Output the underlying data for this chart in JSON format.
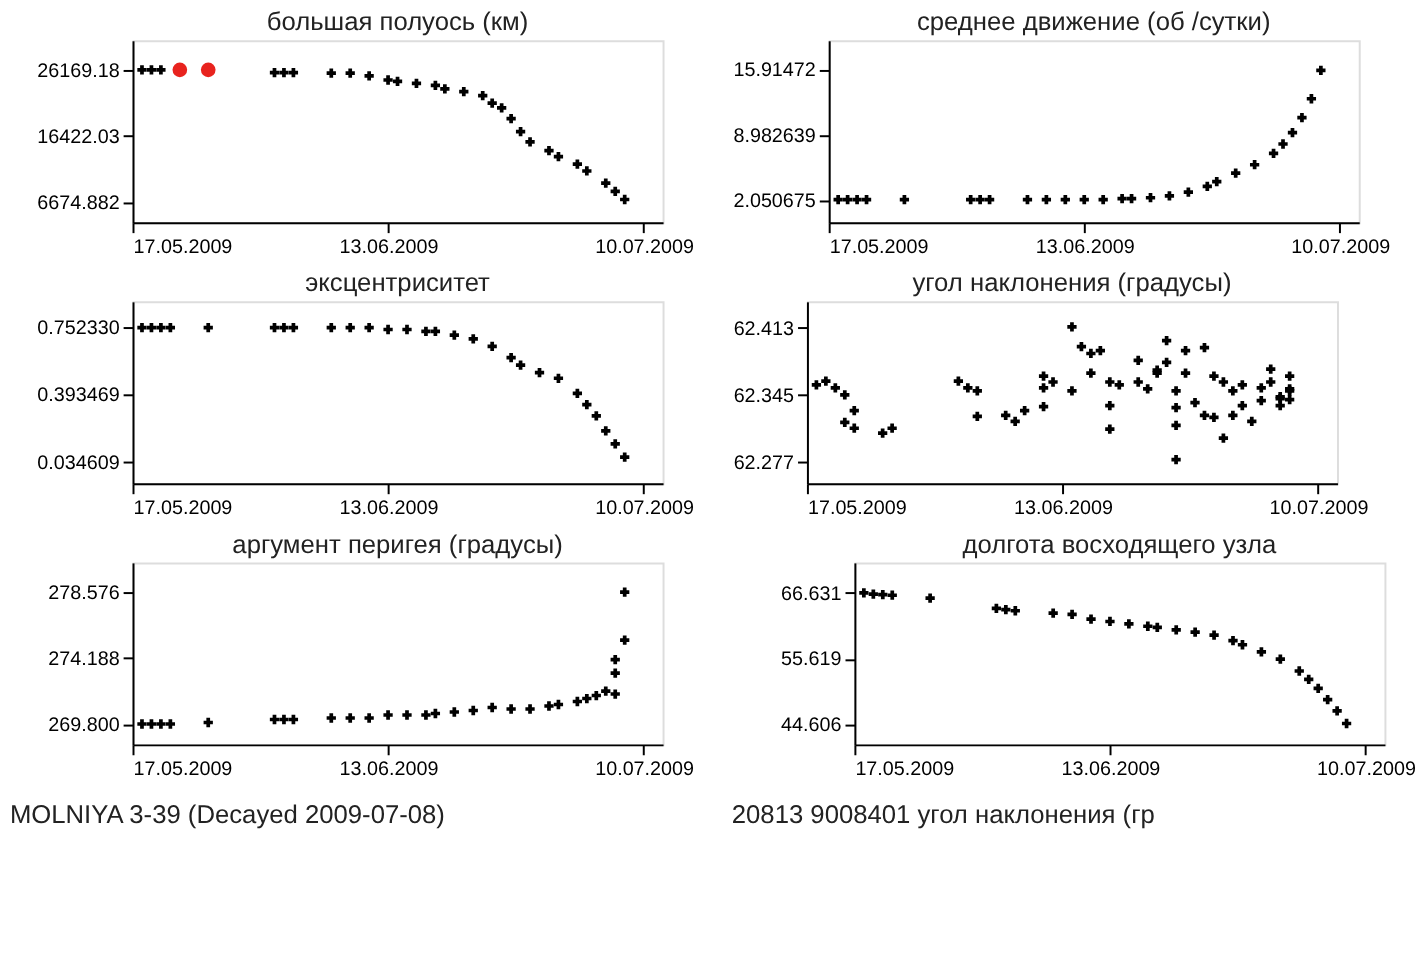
{
  "chart_data": [
    {
      "type": "scatter",
      "title": "большая полуось (км)",
      "marker": "cross",
      "xlim": [
        "2009-05-17",
        "2009-07-12"
      ],
      "xticks": [
        {
          "value": "2009-05-17",
          "label": "17.05.2009"
        },
        {
          "value": "2009-06-13",
          "label": "13.06.2009"
        },
        {
          "value": "2009-07-10",
          "label": "10.07.2009"
        }
      ],
      "ylim": [
        3750,
        30550
      ],
      "yticks": [
        6674.882,
        16422.03,
        26169.18
      ],
      "series": [
        {
          "color": "#000000",
          "x": [
            "2009-05-18",
            "2009-05-19",
            "2009-05-20",
            "2009-06-01",
            "2009-06-02",
            "2009-06-03",
            "2009-06-07",
            "2009-06-09",
            "2009-06-11",
            "2009-06-13",
            "2009-06-14",
            "2009-06-16",
            "2009-06-18",
            "2009-06-19",
            "2009-06-21",
            "2009-06-23",
            "2009-06-24",
            "2009-06-25",
            "2009-06-26",
            "2009-06-27",
            "2009-06-28",
            "2009-06-30",
            "2009-07-01",
            "2009-07-03",
            "2009-07-04",
            "2009-07-06",
            "2009-07-07",
            "2009-07-08"
          ],
          "values": [
            26200,
            26200,
            26200,
            25800,
            25800,
            25800,
            25700,
            25700,
            25300,
            24700,
            24500,
            24200,
            23900,
            23400,
            23000,
            22400,
            21300,
            20600,
            19000,
            17100,
            15600,
            14300,
            13400,
            12300,
            11300,
            9500,
            8300,
            7100
          ]
        },
        {
          "color": "#e8231e",
          "marker": "circle",
          "x": [
            "2009-05-22",
            "2009-05-25"
          ],
          "values": [
            26200,
            26200
          ]
        }
      ]
    },
    {
      "type": "scatter",
      "title": "среднее движение (об /сутки)",
      "marker": "cross",
      "xlim": [
        "2009-05-17",
        "2009-07-12"
      ],
      "xticks": [
        {
          "value": "2009-05-17",
          "label": "17.05.2009"
        },
        {
          "value": "2009-06-13",
          "label": "13.06.2009"
        },
        {
          "value": "2009-07-10",
          "label": "10.07.2009"
        }
      ],
      "ylim": [
        -0.3,
        19.0
      ],
      "yticks": [
        2.050675,
        8.982639,
        15.91472
      ],
      "series": [
        {
          "color": "#000000",
          "x": [
            "2009-05-18",
            "2009-05-19",
            "2009-05-20",
            "2009-05-21",
            "2009-05-25",
            "2009-06-01",
            "2009-06-02",
            "2009-06-03",
            "2009-06-07",
            "2009-06-09",
            "2009-06-11",
            "2009-06-13",
            "2009-06-15",
            "2009-06-17",
            "2009-06-18",
            "2009-06-20",
            "2009-06-22",
            "2009-06-24",
            "2009-06-26",
            "2009-06-27",
            "2009-06-29",
            "2009-07-01",
            "2009-07-03",
            "2009-07-04",
            "2009-07-05",
            "2009-07-06",
            "2009-07-07",
            "2009-07-08"
          ],
          "values": [
            2.1,
            2.1,
            2.1,
            2.1,
            2.1,
            2.1,
            2.1,
            2.1,
            2.1,
            2.1,
            2.1,
            2.1,
            2.1,
            2.2,
            2.2,
            2.3,
            2.5,
            2.9,
            3.5,
            4.0,
            4.9,
            5.8,
            7.0,
            8.0,
            9.2,
            10.8,
            12.8,
            15.8
          ]
        }
      ]
    },
    {
      "type": "scatter",
      "title": "эксцентриситет",
      "marker": "cross",
      "xlim": [
        "2009-05-17",
        "2009-07-12"
      ],
      "xticks": [
        {
          "value": "2009-05-17",
          "label": "17.05.2009"
        },
        {
          "value": "2009-06-13",
          "label": "13.06.2009"
        },
        {
          "value": "2009-07-10",
          "label": "10.07.2009"
        }
      ],
      "ylim": [
        -0.08,
        0.89
      ],
      "yticks": [
        0.034609,
        0.393469,
        {
          "value": 0.75233,
          "label": "0.752330"
        }
      ],
      "series": [
        {
          "color": "#000000",
          "x": [
            "2009-05-18",
            "2009-05-19",
            "2009-05-20",
            "2009-05-21",
            "2009-05-25",
            "2009-06-01",
            "2009-06-02",
            "2009-06-03",
            "2009-06-07",
            "2009-06-09",
            "2009-06-11",
            "2009-06-13",
            "2009-06-15",
            "2009-06-17",
            "2009-06-18",
            "2009-06-20",
            "2009-06-22",
            "2009-06-24",
            "2009-06-26",
            "2009-06-27",
            "2009-06-29",
            "2009-07-01",
            "2009-07-03",
            "2009-07-04",
            "2009-07-05",
            "2009-07-06",
            "2009-07-07",
            "2009-07-08"
          ],
          "values": [
            0.75,
            0.75,
            0.75,
            0.75,
            0.75,
            0.75,
            0.75,
            0.75,
            0.75,
            0.75,
            0.75,
            0.74,
            0.74,
            0.73,
            0.73,
            0.71,
            0.69,
            0.65,
            0.59,
            0.55,
            0.51,
            0.48,
            0.4,
            0.34,
            0.28,
            0.2,
            0.13,
            0.06
          ]
        }
      ]
    },
    {
      "type": "scatter",
      "title": "угол наклонения (градусы)",
      "marker": "cross",
      "xlim": [
        "2009-05-17",
        "2009-07-12"
      ],
      "xticks": [
        {
          "value": "2009-05-17",
          "label": "17.05.2009"
        },
        {
          "value": "2009-06-13",
          "label": "13.06.2009"
        },
        {
          "value": "2009-07-10",
          "label": "10.07.2009"
        }
      ],
      "ylim": [
        62.255,
        62.44
      ],
      "yticks": [
        62.277,
        62.345,
        62.413
      ],
      "series": [
        {
          "color": "#000000",
          "x": [
            "2009-05-18",
            "2009-05-19",
            "2009-05-20",
            "2009-05-21",
            "2009-05-22",
            "2009-05-21",
            "2009-05-22",
            "2009-05-25",
            "2009-05-26",
            "2009-06-02",
            "2009-06-03",
            "2009-06-04",
            "2009-06-04",
            "2009-06-07",
            "2009-06-08",
            "2009-06-09",
            "2009-06-11",
            "2009-06-11",
            "2009-06-11",
            "2009-06-12",
            "2009-06-14",
            "2009-06-14",
            "2009-06-15",
            "2009-06-16",
            "2009-06-16",
            "2009-06-17",
            "2009-06-18",
            "2009-06-18",
            "2009-06-18",
            "2009-06-19",
            "2009-06-21",
            "2009-06-21",
            "2009-06-22",
            "2009-06-23",
            "2009-06-23",
            "2009-06-24",
            "2009-06-24",
            "2009-06-25",
            "2009-06-25",
            "2009-06-25",
            "2009-06-25",
            "2009-06-26",
            "2009-06-26",
            "2009-06-27",
            "2009-06-28",
            "2009-06-28",
            "2009-06-29",
            "2009-06-29",
            "2009-06-30",
            "2009-06-30",
            "2009-07-01",
            "2009-07-01",
            "2009-07-02",
            "2009-07-02",
            "2009-07-03",
            "2009-07-04",
            "2009-07-04",
            "2009-07-05",
            "2009-07-05",
            "2009-07-06",
            "2009-07-06",
            "2009-07-07",
            "2009-07-07",
            "2009-07-07",
            "2009-07-07",
            "2009-07-06"
          ],
          "values": [
            62.355,
            62.359,
            62.352,
            62.345,
            62.329,
            62.317,
            62.311,
            62.306,
            62.311,
            62.359,
            62.352,
            62.349,
            62.323,
            62.324,
            62.318,
            62.329,
            62.333,
            62.352,
            62.364,
            62.358,
            62.414,
            62.349,
            62.394,
            62.387,
            62.367,
            62.39,
            62.334,
            62.31,
            62.358,
            62.355,
            62.38,
            62.358,
            62.351,
            62.367,
            62.37,
            62.4,
            62.378,
            62.349,
            62.332,
            62.314,
            62.279,
            62.39,
            62.367,
            62.337,
            62.324,
            62.393,
            62.364,
            62.322,
            62.358,
            62.301,
            62.324,
            62.349,
            62.334,
            62.355,
            62.318,
            62.352,
            62.339,
            62.371,
            62.358,
            62.343,
            62.334,
            62.364,
            62.34,
            62.351,
            62.349,
            62.341
          ]
        }
      ]
    },
    {
      "type": "scatter",
      "title": "аргумент перигея (градусы)",
      "marker": "cross",
      "xlim": [
        "2009-05-17",
        "2009-07-12"
      ],
      "xticks": [
        {
          "value": "2009-05-17",
          "label": "17.05.2009"
        },
        {
          "value": "2009-06-13",
          "label": "13.06.2009"
        },
        {
          "value": "2009-07-10",
          "label": "10.07.2009"
        }
      ],
      "ylim": [
        268.44,
        280.58
      ],
      "yticks": [
        {
          "value": 269.8,
          "label": "269.800"
        },
        274.188,
        278.576
      ],
      "annotations": [
        "MOLNIYA 3-39 (Decayed 2009-07-08)"
      ],
      "series": [
        {
          "color": "#000000",
          "x": [
            "2009-05-18",
            "2009-05-19",
            "2009-05-20",
            "2009-05-21",
            "2009-05-25",
            "2009-06-01",
            "2009-06-02",
            "2009-06-03",
            "2009-06-07",
            "2009-06-09",
            "2009-06-11",
            "2009-06-13",
            "2009-06-15",
            "2009-06-17",
            "2009-06-18",
            "2009-06-20",
            "2009-06-22",
            "2009-06-24",
            "2009-06-26",
            "2009-06-28",
            "2009-06-30",
            "2009-07-01",
            "2009-07-03",
            "2009-07-04",
            "2009-07-05",
            "2009-07-06",
            "2009-07-07",
            "2009-07-07",
            "2009-07-07",
            "2009-07-08",
            "2009-07-08"
          ],
          "values": [
            269.8,
            269.8,
            269.8,
            269.8,
            269.9,
            270.1,
            270.1,
            270.1,
            270.2,
            270.2,
            270.2,
            270.4,
            270.4,
            270.4,
            270.5,
            270.6,
            270.7,
            270.9,
            270.8,
            270.8,
            271.0,
            271.1,
            271.3,
            271.5,
            271.7,
            272.0,
            271.8,
            273.2,
            274.1,
            275.4,
            278.6
          ]
        }
      ]
    },
    {
      "type": "scatter",
      "title": "долгота восходящего узла",
      "marker": "cross",
      "xlim": [
        "2009-05-17",
        "2009-07-12"
      ],
      "xticks": [
        {
          "value": "2009-05-17",
          "label": "17.05.2009"
        },
        {
          "value": "2009-06-13",
          "label": "13.06.2009"
        },
        {
          "value": "2009-07-10",
          "label": "10.07.2009"
        }
      ],
      "ylim": [
        41.2,
        71.7
      ],
      "yticks": [
        44.606,
        55.619,
        66.631
      ],
      "annotations": [
        "20813  9008401  угол наклонения (гр"
      ],
      "series": [
        {
          "color": "#000000",
          "x": [
            "2009-05-18",
            "2009-05-19",
            "2009-05-20",
            "2009-05-21",
            "2009-05-25",
            "2009-06-01",
            "2009-06-02",
            "2009-06-03",
            "2009-06-07",
            "2009-06-09",
            "2009-06-11",
            "2009-06-13",
            "2009-06-15",
            "2009-06-17",
            "2009-06-18",
            "2009-06-20",
            "2009-06-22",
            "2009-06-24",
            "2009-06-26",
            "2009-06-27",
            "2009-06-29",
            "2009-07-01",
            "2009-07-03",
            "2009-07-04",
            "2009-07-05",
            "2009-07-06",
            "2009-07-07",
            "2009-07-08"
          ],
          "values": [
            66.6,
            66.4,
            66.3,
            66.2,
            65.7,
            64.0,
            63.8,
            63.6,
            63.2,
            63.0,
            62.2,
            61.8,
            61.4,
            61.0,
            60.8,
            60.4,
            60.0,
            59.5,
            58.6,
            57.9,
            56.7,
            55.5,
            53.5,
            52.1,
            50.6,
            48.7,
            46.8,
            44.7
          ]
        }
      ]
    }
  ]
}
